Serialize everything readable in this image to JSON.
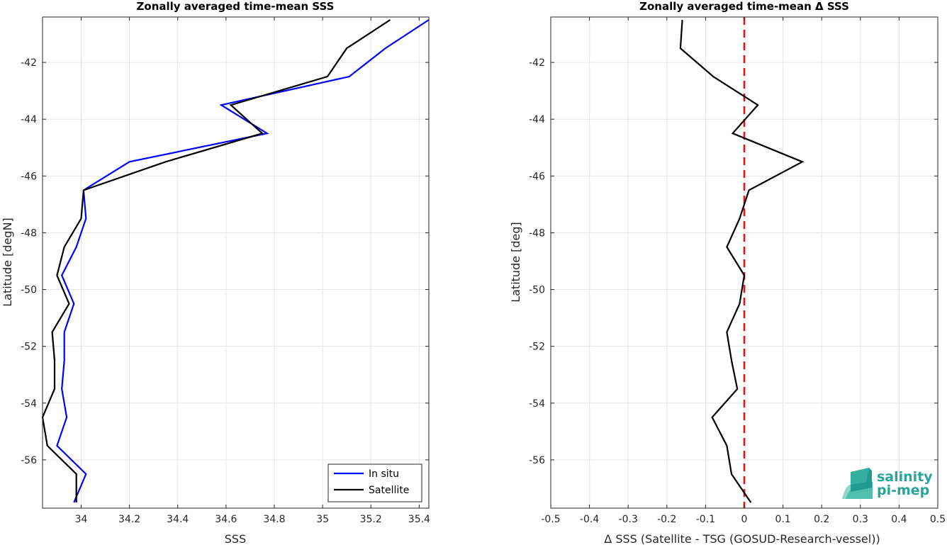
{
  "chart_data": [
    {
      "type": "line",
      "title": "Zonally averaged time-mean SSS",
      "xlabel": "SSS",
      "ylabel": "Latitude [degN]",
      "xlim": [
        33.84,
        35.44
      ],
      "ylim": [
        -57.7,
        -40.4
      ],
      "xticks": [
        34,
        34.2,
        34.4,
        34.6,
        34.8,
        35,
        35.2,
        35.4
      ],
      "xtick_labels": [
        "34",
        "34.2",
        "34.4",
        "34.6",
        "34.8",
        "35",
        "35.2",
        "35.4"
      ],
      "yticks": [
        -42,
        -44,
        -46,
        -48,
        -50,
        -52,
        -54,
        -56
      ],
      "ytick_labels": [
        "-42",
        "-44",
        "-46",
        "-48",
        "-50",
        "-52",
        "-54",
        "-56"
      ],
      "grid": true,
      "legend": "bottom-right",
      "series": [
        {
          "name": "In situ",
          "color": "#0000ff",
          "x": [
            35.44,
            35.26,
            35.11,
            34.58,
            34.77,
            34.2,
            34.01,
            34.02,
            33.98,
            33.92,
            33.97,
            33.93,
            33.93,
            33.92,
            33.94,
            33.9,
            34.02,
            33.97
          ],
          "y": [
            -40.5,
            -41.5,
            -42.5,
            -43.5,
            -44.5,
            -45.5,
            -46.5,
            -47.5,
            -48.5,
            -49.5,
            -50.5,
            -51.5,
            -52.5,
            -53.5,
            -54.5,
            -55.5,
            -56.5,
            -57.5
          ]
        },
        {
          "name": "Satellite",
          "color": "#000000",
          "x": [
            35.28,
            35.1,
            35.02,
            34.62,
            34.75,
            34.35,
            34.01,
            34.0,
            33.93,
            33.9,
            33.95,
            33.88,
            33.89,
            33.89,
            33.84,
            33.86,
            33.98,
            33.98
          ],
          "y": [
            -40.5,
            -41.5,
            -42.5,
            -43.5,
            -44.5,
            -45.5,
            -46.5,
            -47.5,
            -48.5,
            -49.5,
            -50.5,
            -51.5,
            -52.5,
            -53.5,
            -54.5,
            -55.5,
            -56.5,
            -57.5
          ]
        }
      ]
    },
    {
      "type": "line",
      "title": "Zonally averaged time-mean Δ SSS",
      "xlabel": "Δ SSS (Satellite - TSG (GOSUD-Research-vessel))",
      "ylabel": "Latitude [deg]",
      "xlim": [
        -0.5,
        0.5
      ],
      "ylim": [
        -57.7,
        -40.4
      ],
      "xticks": [
        -0.5,
        -0.4,
        -0.3,
        -0.2,
        -0.1,
        0,
        0.1,
        0.2,
        0.3,
        0.4,
        0.5
      ],
      "xtick_labels": [
        "-0.5",
        "-0.4",
        "-0.3",
        "-0.2",
        "-0.1",
        "0",
        "0.1",
        "0.2",
        "0.3",
        "0.4",
        "0.5"
      ],
      "yticks": [
        -42,
        -44,
        -46,
        -48,
        -50,
        -52,
        -54,
        -56
      ],
      "ytick_labels": [
        "-42",
        "-44",
        "-46",
        "-48",
        "-50",
        "-52",
        "-54",
        "-56"
      ],
      "grid": true,
      "reference_line": {
        "x": 0,
        "color": "#e8161b",
        "style": "dashed"
      },
      "series": [
        {
          "color": "#000000",
          "x": [
            -0.16,
            -0.165,
            -0.08,
            0.035,
            -0.03,
            0.15,
            0.012,
            -0.012,
            -0.045,
            0.0,
            -0.012,
            -0.045,
            -0.033,
            -0.018,
            -0.083,
            -0.045,
            -0.033,
            0.017
          ],
          "y": [
            -40.5,
            -41.5,
            -42.5,
            -43.5,
            -44.5,
            -45.5,
            -46.5,
            -47.5,
            -48.5,
            -49.5,
            -50.5,
            -51.5,
            -52.5,
            -53.5,
            -54.5,
            -55.5,
            -56.5,
            -57.5
          ]
        }
      ]
    }
  ],
  "logo": {
    "line1": "salinity",
    "line2": "pi-mep",
    "color": "#2aa39a"
  }
}
